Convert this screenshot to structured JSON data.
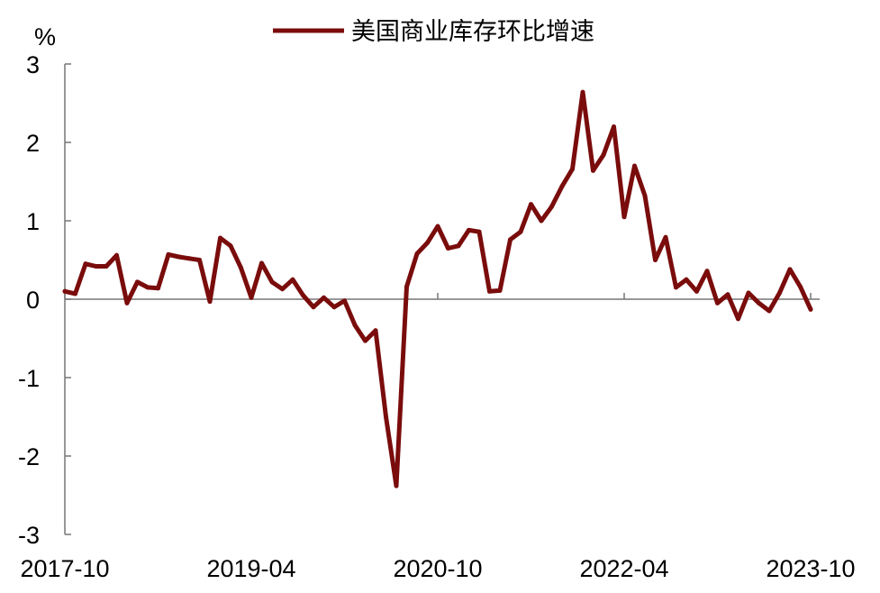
{
  "chart_data": {
    "type": "line",
    "title": "",
    "xlabel": "",
    "ylabel": "%",
    "ylim": [
      -3,
      3
    ],
    "yticks": [
      3,
      2,
      1,
      0,
      -1,
      -2,
      -3
    ],
    "xtick_labels": [
      "2017-10",
      "2019-04",
      "2020-10",
      "2022-04",
      "2023-10"
    ],
    "x_start": "2017-10",
    "x_end": "2023-10",
    "legend_position": "top",
    "series": [
      {
        "name": "美国商业库存环比增速",
        "color": "#7a0c0c",
        "x": [
          "2017-10",
          "2017-11",
          "2017-12",
          "2018-01",
          "2018-02",
          "2018-03",
          "2018-04",
          "2018-05",
          "2018-06",
          "2018-07",
          "2018-08",
          "2018-09",
          "2018-10",
          "2018-11",
          "2018-12",
          "2019-01",
          "2019-02",
          "2019-03",
          "2019-04",
          "2019-05",
          "2019-06",
          "2019-07",
          "2019-08",
          "2019-09",
          "2019-10",
          "2019-11",
          "2019-12",
          "2020-01",
          "2020-02",
          "2020-03",
          "2020-04",
          "2020-05",
          "2020-06",
          "2020-07",
          "2020-08",
          "2020-09",
          "2020-10",
          "2020-11",
          "2020-12",
          "2021-01",
          "2021-02",
          "2021-03",
          "2021-04",
          "2021-05",
          "2021-06",
          "2021-07",
          "2021-08",
          "2021-09",
          "2021-10",
          "2021-11",
          "2021-12",
          "2022-01",
          "2022-02",
          "2022-03",
          "2022-04",
          "2022-05",
          "2022-06",
          "2022-07",
          "2022-08",
          "2022-09",
          "2022-10",
          "2022-11",
          "2022-12",
          "2023-01",
          "2023-02",
          "2023-03",
          "2023-04",
          "2023-05",
          "2023-06",
          "2023-07",
          "2023-08",
          "2023-09",
          "2023-10"
        ],
        "values": [
          0.1,
          0.07,
          0.45,
          0.42,
          0.42,
          0.56,
          -0.05,
          0.22,
          0.15,
          0.14,
          0.57,
          0.54,
          0.52,
          0.5,
          -0.03,
          0.78,
          0.68,
          0.4,
          0.02,
          0.46,
          0.22,
          0.13,
          0.25,
          0.05,
          -0.1,
          0.02,
          -0.1,
          -0.02,
          -0.33,
          -0.53,
          -0.4,
          -1.5,
          -2.38,
          0.16,
          0.58,
          0.72,
          0.93,
          0.65,
          0.68,
          0.88,
          0.86,
          0.1,
          0.11,
          0.76,
          0.86,
          1.21,
          1.0,
          1.18,
          1.44,
          1.66,
          2.64,
          1.64,
          1.84,
          2.2,
          1.05,
          1.7,
          1.32,
          0.5,
          0.79,
          0.15,
          0.25,
          0.1,
          0.36,
          -0.05,
          0.06,
          -0.25,
          0.08,
          -0.05,
          -0.15,
          0.08,
          0.38,
          0.16,
          -0.13
        ]
      }
    ]
  }
}
